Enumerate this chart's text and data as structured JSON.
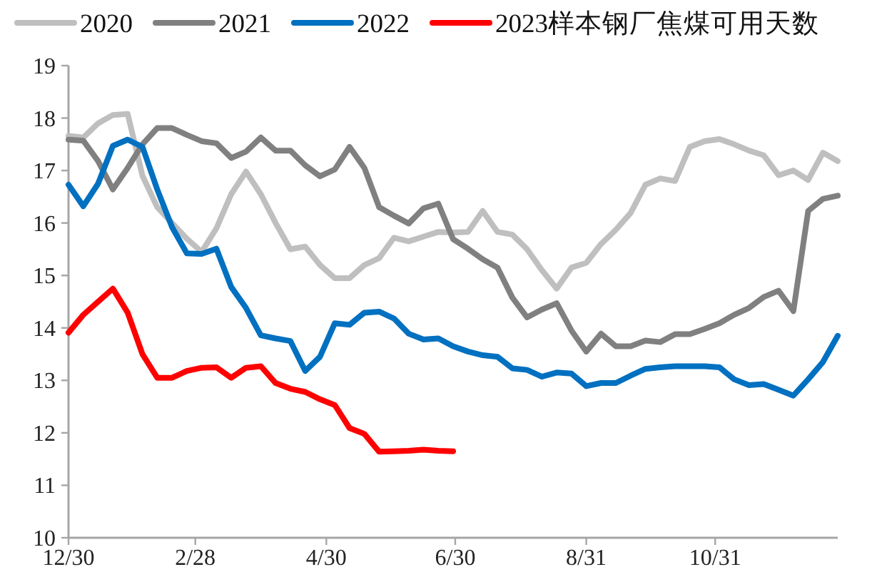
{
  "chart_data": {
    "type": "line",
    "x": [
      "2019-12-30",
      "2020-01-06",
      "2020-01-13",
      "2020-01-20",
      "2020-01-27",
      "2020-02-03",
      "2020-02-10",
      "2020-02-17",
      "2020-02-24",
      "2020-03-02",
      "2020-03-09",
      "2020-03-16",
      "2020-03-23",
      "2020-03-30",
      "2020-04-06",
      "2020-04-13",
      "2020-04-20",
      "2020-04-27",
      "2020-05-04",
      "2020-05-11",
      "2020-05-18",
      "2020-05-25",
      "2020-06-01",
      "2020-06-08",
      "2020-06-15",
      "2020-06-22",
      "2020-06-29",
      "2020-07-06",
      "2020-07-13",
      "2020-07-20",
      "2020-07-27",
      "2020-08-03",
      "2020-08-10",
      "2020-08-17",
      "2020-08-24",
      "2020-08-31",
      "2020-09-07",
      "2020-09-14",
      "2020-09-21",
      "2020-09-28",
      "2020-10-05",
      "2020-10-12",
      "2020-10-19",
      "2020-10-26",
      "2020-11-02",
      "2020-11-09",
      "2020-11-16",
      "2020-11-23",
      "2020-11-30",
      "2020-12-07",
      "2020-12-14",
      "2020-12-21",
      "2020-12-28"
    ],
    "series": [
      {
        "name": "2020",
        "color": "#bfbfbf",
        "values": [
          17.66,
          17.63,
          17.9,
          18.06,
          18.08,
          16.9,
          16.3,
          16.0,
          15.7,
          15.45,
          15.9,
          16.55,
          16.98,
          16.55,
          16.0,
          15.5,
          15.55,
          15.2,
          14.95,
          14.95,
          15.2,
          15.33,
          15.72,
          15.65,
          15.74,
          15.83,
          15.82,
          15.83,
          16.23,
          15.83,
          15.78,
          15.5,
          15.1,
          14.75,
          15.15,
          15.24,
          15.6,
          15.87,
          16.19,
          16.73,
          16.85,
          16.8,
          17.45,
          17.56,
          17.6,
          17.5,
          17.38,
          17.29,
          16.91,
          17.0,
          16.82,
          17.34,
          17.18
        ]
      },
      {
        "name": "2021",
        "color": "#808080",
        "values": [
          17.59,
          17.57,
          17.18,
          16.64,
          17.05,
          17.5,
          17.81,
          17.81,
          17.68,
          17.56,
          17.52,
          17.24,
          17.36,
          17.63,
          17.38,
          17.38,
          17.1,
          16.89,
          17.02,
          17.45,
          17.05,
          16.3,
          16.14,
          15.99,
          16.28,
          16.37,
          15.69,
          15.51,
          15.31,
          15.15,
          14.58,
          14.2,
          14.35,
          14.47,
          13.95,
          13.55,
          13.89,
          13.65,
          13.65,
          13.76,
          13.73,
          13.88,
          13.88,
          13.98,
          14.09,
          14.25,
          14.38,
          14.59,
          14.71,
          14.32,
          16.23,
          16.46,
          16.52
        ]
      },
      {
        "name": "2022",
        "color": "#0070c0",
        "values": [
          16.73,
          16.32,
          16.75,
          17.47,
          17.59,
          17.45,
          16.64,
          15.92,
          15.42,
          15.41,
          15.51,
          14.78,
          14.38,
          13.86,
          13.8,
          13.75,
          13.18,
          13.45,
          14.09,
          14.06,
          14.29,
          14.31,
          14.18,
          13.89,
          13.78,
          13.8,
          13.65,
          13.55,
          13.48,
          13.45,
          13.23,
          13.2,
          13.07,
          13.15,
          13.13,
          12.89,
          12.95,
          12.95,
          13.09,
          13.22,
          13.25,
          13.27,
          13.27,
          13.27,
          13.25,
          13.02,
          12.91,
          12.93,
          12.82,
          12.71,
          13.02,
          13.35,
          13.85
        ]
      },
      {
        "name": "2023样本钢厂焦煤可用天数",
        "color": "#ff0000",
        "values": [
          13.91,
          14.25,
          14.5,
          14.75,
          14.29,
          13.5,
          13.05,
          13.05,
          13.18,
          13.24,
          13.25,
          13.05,
          13.24,
          13.27,
          12.95,
          12.84,
          12.78,
          12.64,
          12.53,
          12.09,
          11.98,
          11.64,
          11.65,
          11.66,
          11.68,
          11.66,
          11.65,
          null,
          null,
          null,
          null,
          null,
          null,
          null,
          null,
          null,
          null,
          null,
          null,
          null,
          null,
          null,
          null,
          null,
          null,
          null,
          null,
          null,
          null,
          null,
          null,
          null,
          null
        ]
      }
    ],
    "xlim": [
      "2019-12-30",
      "2020-12-28"
    ],
    "xticks": [
      {
        "value": "2019-12-30",
        "label": "12/30"
      },
      {
        "value": "2020-02-28",
        "label": "2/28"
      },
      {
        "value": "2020-04-30",
        "label": "4/30"
      },
      {
        "value": "2020-06-30",
        "label": "6/30"
      },
      {
        "value": "2020-08-31",
        "label": "8/31"
      },
      {
        "value": "2020-10-31",
        "label": "10/31"
      }
    ],
    "ylim": [
      10,
      19
    ],
    "yticks": [
      10,
      11,
      12,
      13,
      14,
      15,
      16,
      17,
      18,
      19
    ],
    "grid": false,
    "legend": "top",
    "marker": "none",
    "line_style": "solid"
  }
}
